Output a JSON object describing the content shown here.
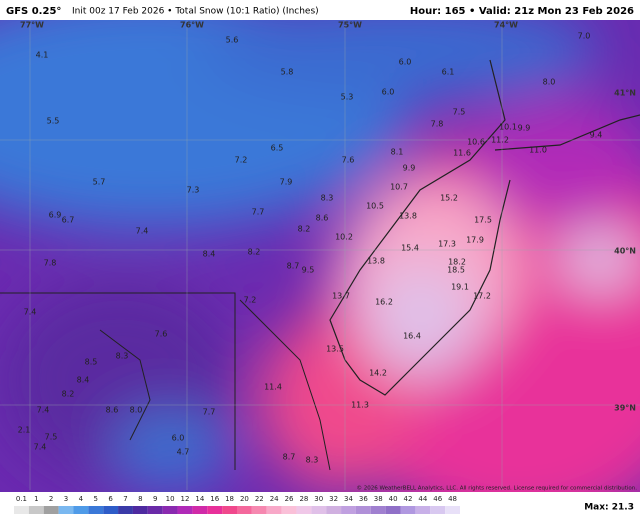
{
  "header": {
    "model": "GFS 0.25°",
    "info": "Init 00z 17 Feb 2026 • Total Snow (10:1 Ratio) (Inches)",
    "valid": "Hour: 165 • Valid: 21z Mon 23 Feb 2026"
  },
  "map": {
    "geo_labels": [
      "77°W",
      "76°W",
      "75°W",
      "74°W",
      "41°N",
      "40°N",
      "39°N"
    ],
    "labels": [
      "4.1",
      "5.6",
      "6.0",
      "6.1",
      "7.0",
      "8.0",
      "5.8",
      "5.3",
      "6.0",
      "5.5",
      "7.5",
      "7.8",
      "10.1",
      "9.9",
      "9.4",
      "6.5",
      "10.6",
      "11.2",
      "11.0",
      "7.2",
      "8.1",
      "11.6",
      "7.6",
      "9.9",
      "5.7",
      "7.9",
      "7.3",
      "10.7",
      "8.3",
      "15.2",
      "6.9",
      "6.7",
      "10.5",
      "7.7",
      "13.8",
      "8.6",
      "17.5",
      "7.4",
      "8.2",
      "10.2",
      "17.3",
      "17.9",
      "15.4",
      "8.4",
      "8.2",
      "18.2",
      "7.8",
      "8.7",
      "9.5",
      "13.8",
      "18.5",
      "19.1",
      "7.2",
      "13.7",
      "16.2",
      "17.2",
      "7.4",
      "7.6",
      "16.4",
      "13.5",
      "8.5",
      "8.3",
      "8.4",
      "14.2",
      "11.4",
      "8.2",
      "8.6",
      "8.0",
      "11.3",
      "7.4",
      "7.7",
      "2.1",
      "7.5",
      "6.0",
      "7.4",
      "8.3",
      "4.7",
      "8.7"
    ],
    "copyright": "© 2026 WeatherBELL Analytics, LLC. All rights reserved. License required for commercial distribution."
  },
  "colorbar": {
    "labels": [
      "0.1",
      "1",
      "2",
      "3",
      "4",
      "5",
      "6",
      "7",
      "8",
      "9",
      "10",
      "12",
      "14",
      "16",
      "18",
      "20",
      "22",
      "24",
      "26",
      "28",
      "30",
      "32",
      "34",
      "36",
      "38",
      "40",
      "42",
      "44",
      "46",
      "48"
    ],
    "colors": [
      "#e8e8e8",
      "#c8c8c8",
      "#a0a0a0",
      "#7ab8f0",
      "#4f9be8",
      "#3a78d8",
      "#2e5cc8",
      "#3a3aa8",
      "#4e2aa0",
      "#6a2aa8",
      "#8a2ab0",
      "#b02ab8",
      "#d02aa8",
      "#e8309a",
      "#f0488c",
      "#f4689c",
      "#f688b0",
      "#f8a8c8",
      "#fac0d8",
      "#f0c8e8",
      "#e0c0e8",
      "#d0b0e0",
      "#c0a0e0",
      "#b090d8",
      "#a080d0",
      "#9070c8",
      "#b098e0",
      "#c8b0e8",
      "#d8c8f0",
      "#e8e0f8"
    ],
    "max": "Max: 21.3"
  }
}
